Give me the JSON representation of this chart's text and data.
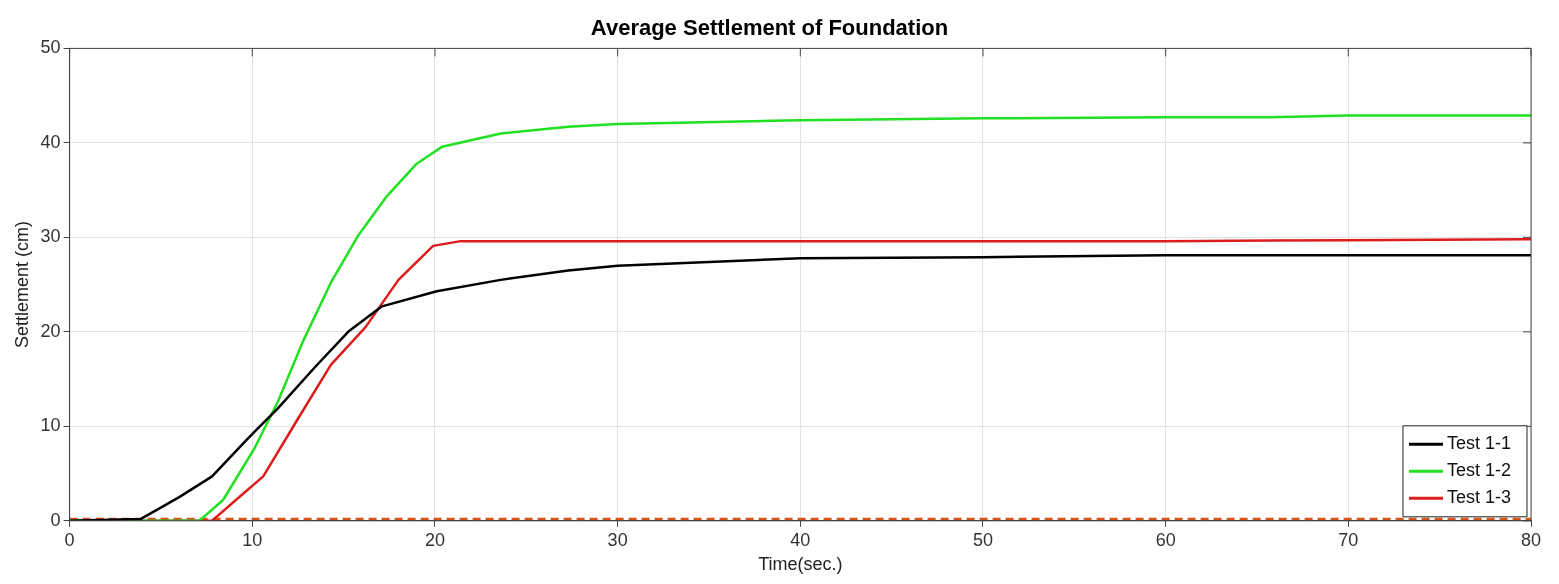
{
  "chart_data": {
    "type": "line",
    "title": "Average Settlement of Foundation",
    "xlabel": "Time(sec.)",
    "ylabel": "Settlement (cm)",
    "xlim": [
      0,
      80
    ],
    "xticks": [
      0,
      10,
      20,
      30,
      40,
      50,
      60,
      70,
      80
    ],
    "ylim": [
      0,
      50
    ],
    "yticks": [
      0,
      10,
      20,
      30,
      40,
      50
    ],
    "grid": true,
    "legend": "bottom right",
    "marker": "none",
    "line_style": "solid",
    "series": [
      {
        "name": "Test 1-1",
        "color": "#000000",
        "x": [
          0,
          3.9,
          6.0,
          7.8,
          9.7,
          11.4,
          13.4,
          15.3,
          17.1,
          20.1,
          23.6,
          27.3,
          30,
          40,
          50,
          60,
          70,
          80
        ],
        "values": [
          0,
          0.2,
          2.5,
          4.7,
          8.6,
          11.9,
          16.2,
          20.1,
          22.7,
          24.3,
          25.5,
          26.5,
          27.0,
          27.8,
          27.9,
          28.1,
          28.1,
          28.1
        ]
      },
      {
        "name": "Test 1-2",
        "color": "#22e022",
        "x": [
          0,
          7.1,
          8.4,
          10.1,
          11.4,
          12.8,
          14.3,
          15.8,
          17.3,
          19.0,
          20.4,
          23.6,
          27.3,
          30,
          40,
          50,
          60,
          65.3,
          70,
          80
        ],
        "values": [
          0,
          0,
          2.2,
          7.6,
          12.6,
          19.1,
          25.2,
          30.2,
          34.2,
          37.8,
          39.6,
          41.0,
          41.7,
          42.0,
          42.4,
          42.6,
          42.7,
          42.7,
          42.9,
          42.9
        ]
      },
      {
        "name": "Test 1-3",
        "color": "#dd1c1c",
        "x": [
          0,
          7.8,
          9.1,
          10.6,
          12.5,
          14.3,
          16.2,
          18.0,
          19.9,
          21.4,
          30,
          40,
          50,
          60,
          70,
          80
        ],
        "values": [
          0,
          0,
          2.2,
          4.7,
          10.8,
          16.5,
          20.5,
          25.5,
          29.1,
          29.6,
          29.6,
          29.6,
          29.6,
          29.6,
          29.7,
          29.8
        ]
      },
      {
        "color": "#d95319",
        "line_style": "dashed",
        "x": [
          0,
          10,
          20,
          30,
          40,
          50,
          60,
          70,
          80
        ],
        "values": [
          0.2,
          0.2,
          0.2,
          0.2,
          0.2,
          0.2,
          0.2,
          0.2,
          0.2
        ]
      }
    ]
  }
}
